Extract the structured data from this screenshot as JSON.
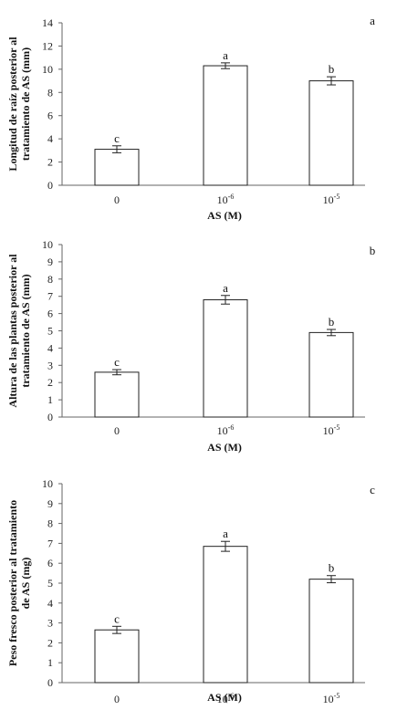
{
  "chart_data": [
    {
      "type": "bar",
      "panel_label": "a",
      "categories": [
        {
          "base": "10",
          "exp": "",
          "text": "0"
        },
        {
          "base": "10",
          "exp": "-6",
          "text": ""
        },
        {
          "base": "10",
          "exp": "-5",
          "text": ""
        }
      ],
      "values": [
        3.1,
        10.3,
        9.0
      ],
      "errors": [
        0.3,
        0.25,
        0.35
      ],
      "significance": [
        "c",
        "a",
        "b"
      ],
      "ylabel_lines": [
        "Longitud de raíz posterior al",
        "tratamiento de AS (mm)"
      ],
      "xlabel": "AS (M)",
      "ylim": [
        0,
        14
      ],
      "yticks": [
        0,
        2,
        4,
        6,
        8,
        10,
        12,
        14
      ],
      "grid": false,
      "bar_color": "#ffffff"
    },
    {
      "type": "bar",
      "panel_label": "b",
      "categories": [
        {
          "base": "10",
          "exp": "",
          "text": "0"
        },
        {
          "base": "10",
          "exp": "-6",
          "text": ""
        },
        {
          "base": "10",
          "exp": "-5",
          "text": ""
        }
      ],
      "values": [
        2.6,
        6.8,
        4.9
      ],
      "errors": [
        0.15,
        0.25,
        0.18
      ],
      "significance": [
        "c",
        "a",
        "b"
      ],
      "ylabel_lines": [
        "Altura de las plantas posterior al",
        "tratamiento de AS (mm)"
      ],
      "xlabel": "AS (M)",
      "ylim": [
        0,
        10
      ],
      "yticks": [
        0,
        1,
        2,
        3,
        4,
        5,
        6,
        7,
        8,
        9,
        10
      ],
      "grid": false,
      "bar_color": "#ffffff"
    },
    {
      "type": "bar",
      "panel_label": "c",
      "categories": [
        {
          "base": "10",
          "exp": "",
          "text": "0"
        },
        {
          "base": "10",
          "exp": "-6",
          "text": ""
        },
        {
          "base": "10",
          "exp": "-5",
          "text": ""
        }
      ],
      "values": [
        2.65,
        6.85,
        5.2
      ],
      "errors": [
        0.18,
        0.25,
        0.18
      ],
      "significance": [
        "c",
        "a",
        "b"
      ],
      "ylabel_lines": [
        "Peso fresco posterior al tratamiento",
        "de AS (mg)"
      ],
      "xlabel": "AS (M)",
      "ylim": [
        0,
        10
      ],
      "yticks": [
        0,
        1,
        2,
        3,
        4,
        5,
        6,
        7,
        8,
        9,
        10
      ],
      "grid": false,
      "bar_color": "#ffffff"
    }
  ]
}
